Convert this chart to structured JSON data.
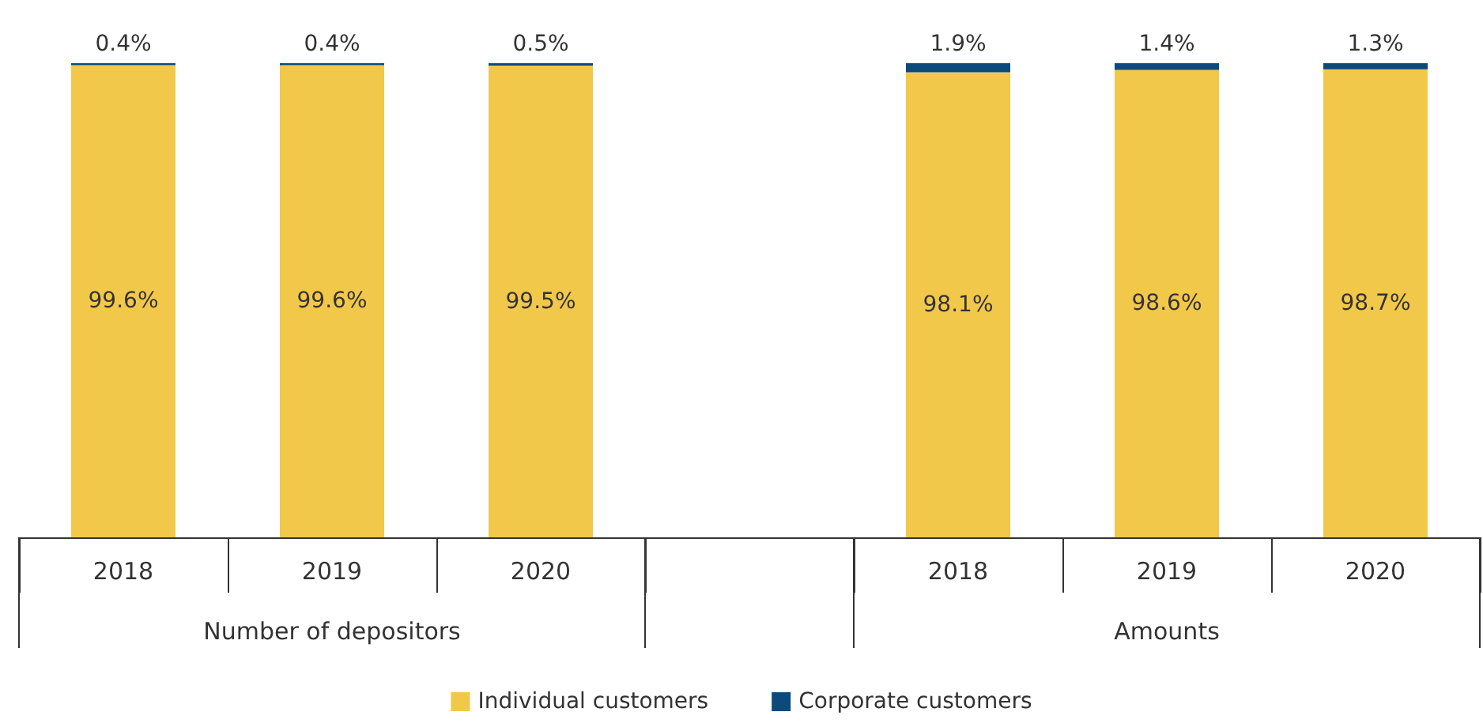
{
  "chart_data": {
    "type": "bar",
    "stacked": true,
    "categories": [
      "2018",
      "2019",
      "2020",
      null,
      "2018",
      "2019",
      "2020"
    ],
    "series": [
      {
        "name": "Individual customers",
        "color": "#f2c84b",
        "values": [
          99.6,
          99.6,
          99.5,
          null,
          98.1,
          98.6,
          98.7
        ],
        "value_labels": [
          "99.6%",
          "99.6%",
          "99.5%",
          null,
          "98.1%",
          "98.6%",
          "98.7%"
        ]
      },
      {
        "name": "Corporate customers",
        "color": "#0c4a7c",
        "values": [
          0.4,
          0.4,
          0.5,
          null,
          1.9,
          1.4,
          1.3
        ],
        "value_labels": [
          "0.4%",
          "0.4%",
          "0.5%",
          null,
          "1.9%",
          "1.4%",
          "1.3%"
        ]
      }
    ],
    "tick_labels": "x",
    "legend": "bottom",
    "grid": false,
    "annotations": [
      "Number of depositors",
      "Amounts"
    ]
  }
}
